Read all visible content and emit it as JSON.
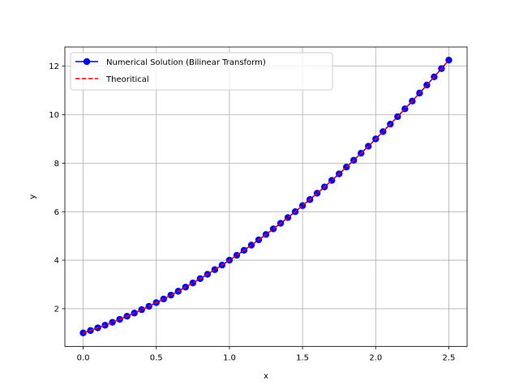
{
  "chart_data": {
    "type": "line",
    "title": "",
    "xlabel": "x",
    "ylabel": "y",
    "xlim": [
      -0.125,
      2.625
    ],
    "ylim": [
      0.44,
      12.79
    ],
    "xticks": [
      0.0,
      0.5,
      1.0,
      1.5,
      2.0,
      2.5
    ],
    "xtick_labels": [
      "0.0",
      "0.5",
      "1.0",
      "1.5",
      "2.0",
      "2.5"
    ],
    "yticks": [
      2,
      4,
      6,
      8,
      10,
      12
    ],
    "ytick_labels": [
      "2",
      "4",
      "6",
      "8",
      "10",
      "12"
    ],
    "grid": true,
    "legend_position": "top-left",
    "x": [
      0.0,
      0.05,
      0.1,
      0.15,
      0.2,
      0.25,
      0.3,
      0.35,
      0.4,
      0.45,
      0.5,
      0.55,
      0.6,
      0.65,
      0.7,
      0.75,
      0.8,
      0.85,
      0.9,
      0.95,
      1.0,
      1.05,
      1.1,
      1.15,
      1.2,
      1.25,
      1.3,
      1.35,
      1.4,
      1.45,
      1.5,
      1.55,
      1.6,
      1.65,
      1.7,
      1.75,
      1.8,
      1.85,
      1.9,
      1.95,
      2.0,
      2.05,
      2.1,
      2.15,
      2.2,
      2.25,
      2.3,
      2.35,
      2.4,
      2.45,
      2.5
    ],
    "series": [
      {
        "name": "Numerical Solution (Bilinear Transform)",
        "color": "#0000ff",
        "style": "solid-with-markers",
        "marker": "circle",
        "values": [
          1.0,
          1.1,
          1.21,
          1.32,
          1.44,
          1.56,
          1.69,
          1.82,
          1.96,
          2.1,
          2.25,
          2.4,
          2.56,
          2.72,
          2.89,
          3.06,
          3.24,
          3.42,
          3.61,
          3.8,
          4.0,
          4.2,
          4.41,
          4.62,
          4.84,
          5.06,
          5.29,
          5.52,
          5.76,
          6.0,
          6.25,
          6.5,
          6.76,
          7.02,
          7.29,
          7.56,
          7.84,
          8.12,
          8.41,
          8.7,
          9.0,
          9.3,
          9.61,
          9.92,
          10.24,
          10.56,
          10.89,
          11.22,
          11.56,
          11.9,
          12.25
        ]
      },
      {
        "name": "Theoritical",
        "color": "#ff0000",
        "style": "dashed",
        "values": [
          1.0,
          1.1,
          1.21,
          1.32,
          1.44,
          1.56,
          1.69,
          1.82,
          1.96,
          2.1,
          2.25,
          2.4,
          2.56,
          2.72,
          2.89,
          3.06,
          3.24,
          3.42,
          3.61,
          3.8,
          4.0,
          4.2,
          4.41,
          4.62,
          4.84,
          5.06,
          5.29,
          5.52,
          5.76,
          6.0,
          6.25,
          6.5,
          6.76,
          7.02,
          7.29,
          7.56,
          7.84,
          8.12,
          8.41,
          8.7,
          9.0,
          9.3,
          9.61,
          9.92,
          10.24,
          10.56,
          10.89,
          11.22,
          11.56,
          11.9,
          12.25
        ]
      }
    ]
  },
  "colors": {
    "grid": "#b0b0b0",
    "axes": "#000000",
    "legend_border": "#cccccc"
  }
}
